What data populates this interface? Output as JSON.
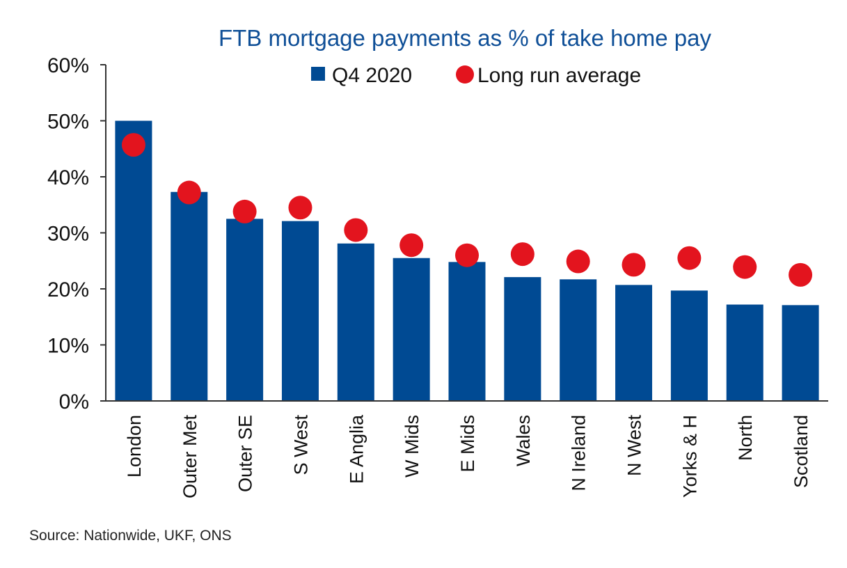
{
  "chart_data": {
    "type": "bar",
    "title": "FTB mortgage payments as % of take home pay",
    "categories": [
      "London",
      "Outer Met",
      "Outer SE",
      "S West",
      "E Anglia",
      "W Mids",
      "E Mids",
      "Wales",
      "N Ireland",
      "N West",
      "Yorks & H",
      "North",
      "Scotland"
    ],
    "series": [
      {
        "name": "Q4 2020",
        "kind": "bar",
        "color": "#004a93",
        "values": [
          50.0,
          37.3,
          32.5,
          32.1,
          28.1,
          25.5,
          24.8,
          22.1,
          21.7,
          20.7,
          19.7,
          17.2,
          17.1
        ]
      },
      {
        "name": "Long run average",
        "kind": "marker",
        "color": "#e3141e",
        "values": [
          45.7,
          37.2,
          33.8,
          34.5,
          30.5,
          27.8,
          26.0,
          26.2,
          24.9,
          24.3,
          25.5,
          23.9,
          22.5
        ]
      }
    ],
    "ylim": [
      0,
      60
    ],
    "yticks": [
      "0%",
      "10%",
      "20%",
      "30%",
      "40%",
      "50%",
      "60%"
    ],
    "grid": false,
    "legend_position": "top"
  },
  "footer": {
    "source": "Source: Nationwide, UKF, ONS"
  }
}
